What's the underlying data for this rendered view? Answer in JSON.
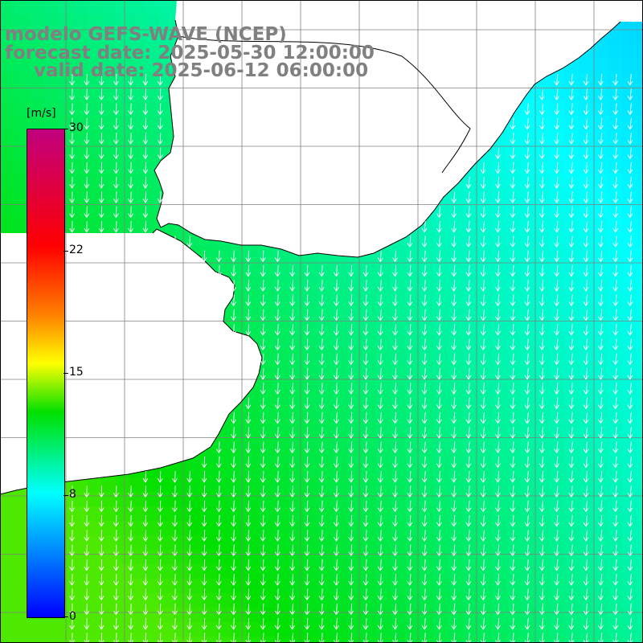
{
  "header": {
    "line1": "modelo GEFS-WAVE (NCEP)",
    "line2": "forecast date: 2025-05-30 12:00:00",
    "line3": "valid date: 2025-06-12 06:00:00"
  },
  "colorbar": {
    "unit": "[m/s]",
    "ticks": [
      "30",
      "22",
      "15",
      "8",
      "0"
    ],
    "tick_values": [
      30,
      22,
      15,
      8,
      0
    ],
    "colors": [
      "#0000ff",
      "#00ffff",
      "#00e000",
      "#ffff00",
      "#ff8000",
      "#ff0000",
      "#c00080"
    ]
  },
  "map": {
    "land_color": "#ffffff",
    "grid": true,
    "arrow_color": "#ffffff",
    "arrow_direction": "southward"
  }
}
